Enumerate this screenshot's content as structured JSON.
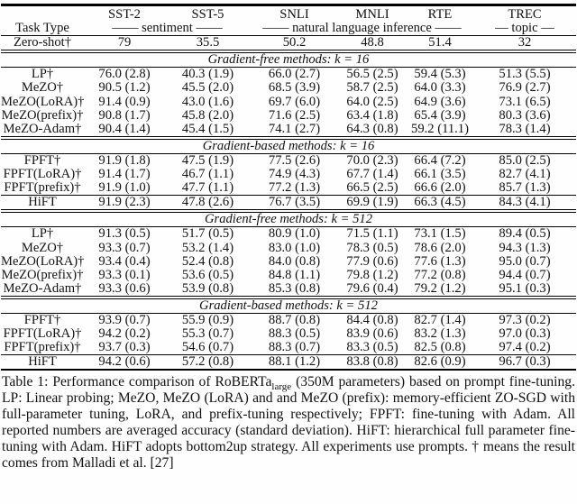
{
  "table": {
    "columns": [
      "SST-2",
      "SST-5",
      "SNLI",
      "MNLI",
      "RTE",
      "TREC"
    ],
    "task_type_label": "Task Type",
    "task_groups": [
      {
        "label": "—— sentiment ——",
        "span": 2
      },
      {
        "label": "—— natural language inference ——",
        "span": 3
      },
      {
        "label": "— topic —",
        "span": 1
      }
    ],
    "zero_shot": {
      "label": "Zero-shot†",
      "values": [
        "79",
        "35.5",
        "50.2",
        "48.8",
        "51.4",
        "32"
      ]
    },
    "sections": [
      {
        "title": "Gradient-free methods: k = 16",
        "rows": [
          {
            "label": "LP†",
            "values": [
              "76.0 (2.8)",
              "40.3 (1.9)",
              "66.0 (2.7)",
              "56.5 (2.5)",
              "59.4 (5.3)",
              "51.3 (5.5)"
            ]
          },
          {
            "label": "MeZO†",
            "values": [
              "90.5 (1.2)",
              "45.5 (2.0)",
              "68.5 (3.9)",
              "58.7 (2.5)",
              "64.0 (3.3)",
              "76.9 (2.7)"
            ]
          },
          {
            "label": "MeZO(LoRA)†",
            "values": [
              "91.4 (0.9)",
              "43.0 (1.6)",
              "69.7 (6.0)",
              "64.0 (2.5)",
              "64.9 (3.6)",
              "73.1 (6.5)"
            ]
          },
          {
            "label": "MeZO(prefix)†",
            "values": [
              "90.8 (1.7)",
              "45.8 (2.0)",
              "71.6 (2.5)",
              "63.4 (1.8)",
              "65.4 (3.9)",
              "80.3 (3.6)"
            ]
          },
          {
            "label": "MeZO-Adam†",
            "values": [
              "90.4 (1.4)",
              "45.4 (1.5)",
              "74.1 (2.7)",
              "64.3 (0.8)",
              "59.2 (11.1)",
              "78.3 (1.4)"
            ]
          }
        ]
      },
      {
        "title": "Gradient-based methods: k = 16",
        "rows": [
          {
            "label": "FPFT†",
            "values": [
              "91.9 (1.8)",
              "47.5 (1.9)",
              "77.5 (2.6)",
              "70.0 (2.3)",
              "66.4 (7.2)",
              "85.0 (2.5)"
            ]
          },
          {
            "label": "FPFT(LoRA)†",
            "values": [
              "91.4 (1.7)",
              "46.7 (1.1)",
              "74.9 (4.3)",
              "67.7 (1.4)",
              "66.1 (3.5)",
              "82.7 (4.1)"
            ]
          },
          {
            "label": "FPFT(prefix)†",
            "values": [
              "91.9 (1.0)",
              "47.7 (1.1)",
              "77.2 (1.3)",
              "66.5 (2.5)",
              "66.6 (2.0)",
              "85.7 (1.3)"
            ]
          },
          {
            "label": "HiFT",
            "values": [
              "91.9 (2.3)",
              "47.8 (2.6)",
              "76.7 (3.5)",
              "69.9 (1.9)",
              "66.3 (4.5)",
              "84.3 (4.1)"
            ]
          }
        ]
      },
      {
        "title": "Gradient-free methods: k = 512",
        "rows": [
          {
            "label": "LP†",
            "values": [
              "91.3 (0.5)",
              "51.7 (0.5)",
              "80.9 (1.0)",
              "71.5 (1.1)",
              "73.1 (1.5)",
              "89.4 (0.5)"
            ]
          },
          {
            "label": "MeZO†",
            "values": [
              "93.3 (0.7)",
              "53.2 (1.4)",
              "83.0 (1.0)",
              "78.3 (0.5)",
              "78.6 (2.0)",
              "94.3 (1.3)"
            ]
          },
          {
            "label": "MeZO(LoRA)†",
            "values": [
              "93.4 (0.4)",
              "52.4 (0.8)",
              "84.0 (0.8)",
              "77.9 (0.6)",
              "77.6 (1.3)",
              "95.0 (0.7)"
            ]
          },
          {
            "label": "MeZO(prefix)†",
            "values": [
              "93.3 (0.1)",
              "53.6 (0.5)",
              "84.8 (1.1)",
              "79.8 (1.2)",
              "77.2 (0.8)",
              "94.4 (0.7)"
            ]
          },
          {
            "label": "MeZO-Adam†",
            "values": [
              "93.3 (0.6)",
              "53.9 (0.8)",
              "85.3 (0.8)",
              "79.6 (0.4)",
              "79.2 (1.2)",
              "95.1 (0.3)"
            ]
          }
        ]
      },
      {
        "title": "Gradient-based methods: k = 512",
        "rows": [
          {
            "label": "FPFT†",
            "values": [
              "93.9 (0.7)",
              "55.9 (0.9)",
              "88.7 (0.8)",
              "84.4 (0.8)",
              "82.7 (1.4)",
              "97.3 (0.2)"
            ]
          },
          {
            "label": "FPFT(LoRA)†",
            "values": [
              "94.2 (0.2)",
              "55.3 (0.7)",
              "88.3 (0.5)",
              "83.9 (0.6)",
              "83.2 (1.3)",
              "97.0 (0.3)"
            ]
          },
          {
            "label": "FPFT(prefix)†",
            "values": [
              "93.7 (0.3)",
              "54.6 (0.7)",
              "88.3 (0.7)",
              "83.3 (0.5)",
              "82.5 (0.8)",
              "97.4 (0.2)"
            ]
          },
          {
            "label": "HiFT",
            "values": [
              "94.2 (0.6)",
              "57.2 (0.8)",
              "88.1 (1.2)",
              "83.8 (0.8)",
              "82.6 (0.9)",
              "96.7 (0.3)"
            ]
          }
        ]
      }
    ]
  },
  "caption": {
    "pre": "Table 1: Performance comparison of RoBERTa",
    "subscript": "large",
    "post": " (350M parameters) based on prompt fine-tuning. LP: Linear probing; MeZO, MeZO (LoRA) and and MeZO (prefix): memory-efficient ZO-SGD with full-parameter tuning, LoRA, and prefix-tuning respectively; FPFT: fine-tuning with Adam. All reported numbers are averaged accuracy (standard deviation). HiFT: hierarchical full parameter fine-tuning with Adam. HiFT adopts bottom2up strategy. All experiments use prompts. † means the result comes from  Malladi et al. [27]"
  }
}
